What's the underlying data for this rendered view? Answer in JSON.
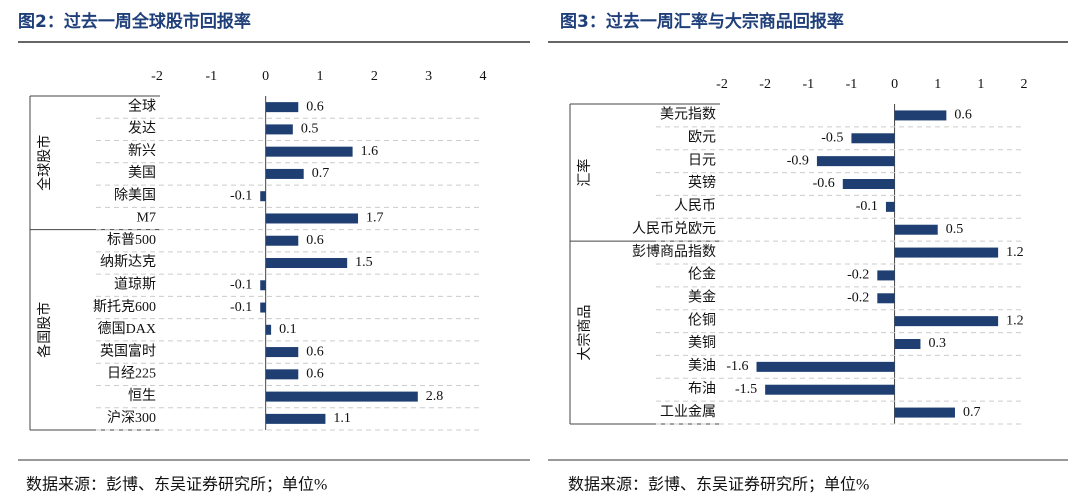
{
  "chart_data": [
    {
      "type": "bar",
      "orientation": "horizontal",
      "title": "图2：过去一周全球股市回报率",
      "categories": [
        "全球",
        "发达",
        "新兴",
        "美国",
        "除美国",
        "M7",
        "标普500",
        "纳斯达克",
        "道琼斯",
        "斯托克600",
        "德国DAX",
        "英国富时",
        "日经225",
        "恒生",
        "沪深300"
      ],
      "values": [
        0.6,
        0.5,
        1.6,
        0.7,
        -0.1,
        1.7,
        0.6,
        1.5,
        -0.1,
        -0.1,
        0.1,
        0.6,
        0.6,
        2.8,
        1.1
      ],
      "groups": [
        {
          "name": "全球股市",
          "size": 6
        },
        {
          "name": "各国股市",
          "size": 9
        }
      ],
      "color": "#1f3f73",
      "negative_label_color": "#e8191c",
      "xlim": [
        -2,
        4
      ],
      "xticks": [
        -2,
        -1,
        0,
        1,
        2,
        3,
        4
      ],
      "grid": true,
      "note": "数据来源：彭博、东吴证券研究所；单位%"
    },
    {
      "type": "bar",
      "orientation": "horizontal",
      "title": "图3：过去一周汇率与大宗商品回报率",
      "categories": [
        "美元指数",
        "欧元",
        "日元",
        "英镑",
        "人民币",
        "人民币兑欧元",
        "彭博商品指数",
        "伦金",
        "美金",
        "伦铜",
        "美铜",
        "美油",
        "布油",
        "工业金属"
      ],
      "values": [
        0.6,
        -0.5,
        -0.9,
        -0.6,
        -0.1,
        0.5,
        1.2,
        -0.2,
        -0.2,
        1.2,
        0.3,
        -1.6,
        -1.5,
        0.7
      ],
      "groups": [
        {
          "name": "汇率",
          "size": 6
        },
        {
          "name": "大宗商品",
          "size": 8
        }
      ],
      "color": "#1f3f73",
      "negative_label_color": "#e8191c",
      "xlim": [
        -2,
        1.5
      ],
      "xticks": [
        -2,
        {
          "value": -1.5,
          "label": "-2"
        },
        -1,
        {
          "value": -0.5,
          "label": "-1"
        },
        0,
        {
          "value": 0.5,
          "label": "1"
        },
        1,
        {
          "value": 1.5,
          "label": "2"
        }
      ],
      "grid": true,
      "note": "数据来源：彭博、东吴证券研究所；单位%"
    }
  ]
}
